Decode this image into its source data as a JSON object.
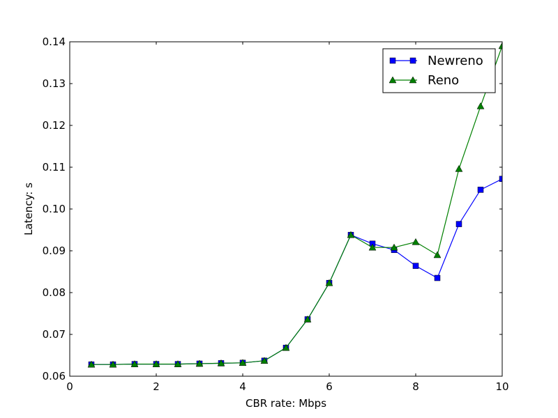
{
  "chart_data": {
    "type": "line",
    "xlabel": "CBR rate: Mbps",
    "ylabel": "Latency: s",
    "xlim": [
      0,
      10
    ],
    "ylim": [
      0.06,
      0.14
    ],
    "x_ticks": [
      "0",
      "2",
      "4",
      "6",
      "8",
      "10"
    ],
    "y_ticks": [
      "0.06",
      "0.07",
      "0.08",
      "0.09",
      "0.10",
      "0.11",
      "0.12",
      "0.13",
      "0.14"
    ],
    "grid": false,
    "legend_position": "top-right",
    "x": [
      0.5,
      1.0,
      1.5,
      2.0,
      2.5,
      3.0,
      3.5,
      4.0,
      4.5,
      5.0,
      5.5,
      6.0,
      6.5,
      7.0,
      7.5,
      8.0,
      8.5,
      9.0,
      9.5,
      10.0
    ],
    "series": [
      {
        "name": "Newreno",
        "color": "#0000ff",
        "marker": "square",
        "values": [
          0.0628,
          0.0628,
          0.0629,
          0.0629,
          0.0629,
          0.063,
          0.0631,
          0.0632,
          0.0637,
          0.0668,
          0.0736,
          0.0823,
          0.0938,
          0.0917,
          0.0902,
          0.0864,
          0.0835,
          0.0964,
          0.1046,
          0.1072
        ]
      },
      {
        "name": "Reno",
        "color": "#008000",
        "marker": "triangle",
        "values": [
          0.0628,
          0.0628,
          0.0629,
          0.0629,
          0.0629,
          0.063,
          0.0631,
          0.0632,
          0.0637,
          0.0668,
          0.0736,
          0.0823,
          0.0938,
          0.0908,
          0.0908,
          0.0921,
          0.089,
          0.1096,
          0.1246,
          0.139
        ]
      }
    ]
  }
}
